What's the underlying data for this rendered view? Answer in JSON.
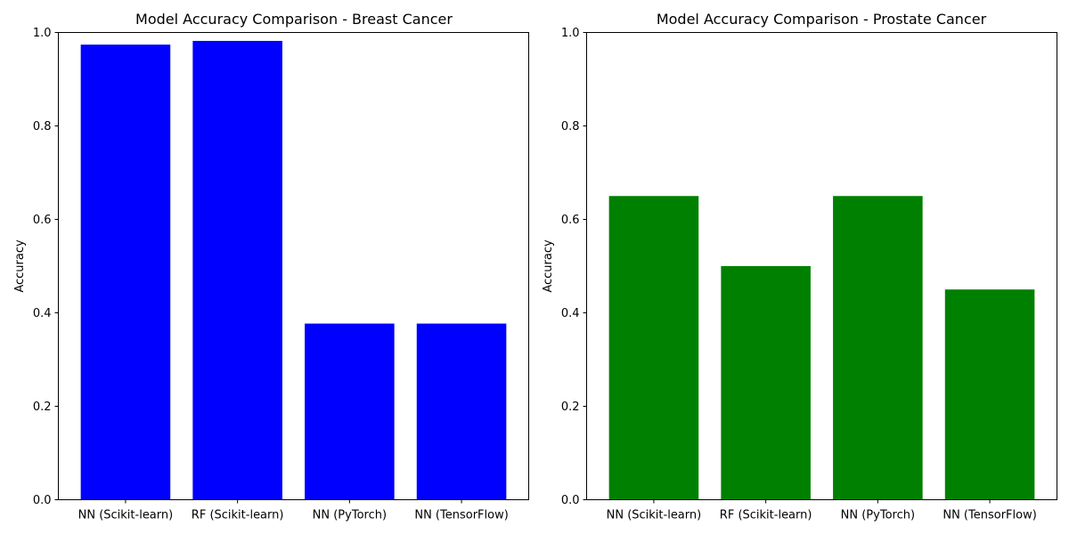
{
  "chart_data": [
    {
      "type": "bar",
      "title": "Model Accuracy Comparison - Breast Cancer",
      "xlabel": "",
      "ylabel": "Accuracy",
      "categories": [
        "NN (Scikit-learn)",
        "RF (Scikit-learn)",
        "NN (PyTorch)",
        "NN (TensorFlow)"
      ],
      "values": [
        0.974,
        0.982,
        0.377,
        0.377
      ],
      "ylim": [
        0,
        1
      ],
      "yticks": [
        "0.0",
        "0.2",
        "0.4",
        "0.6",
        "0.8",
        "1.0"
      ],
      "color": "#0000ff",
      "grid": false
    },
    {
      "type": "bar",
      "title": "Model Accuracy Comparison - Prostate Cancer",
      "xlabel": "",
      "ylabel": "Accuracy",
      "categories": [
        "NN (Scikit-learn)",
        "RF (Scikit-learn)",
        "NN (PyTorch)",
        "NN (TensorFlow)"
      ],
      "values": [
        0.65,
        0.5,
        0.65,
        0.45
      ],
      "ylim": [
        0,
        1
      ],
      "yticks": [
        "0.0",
        "0.2",
        "0.4",
        "0.6",
        "0.8",
        "1.0"
      ],
      "color": "#008000",
      "grid": false
    }
  ]
}
